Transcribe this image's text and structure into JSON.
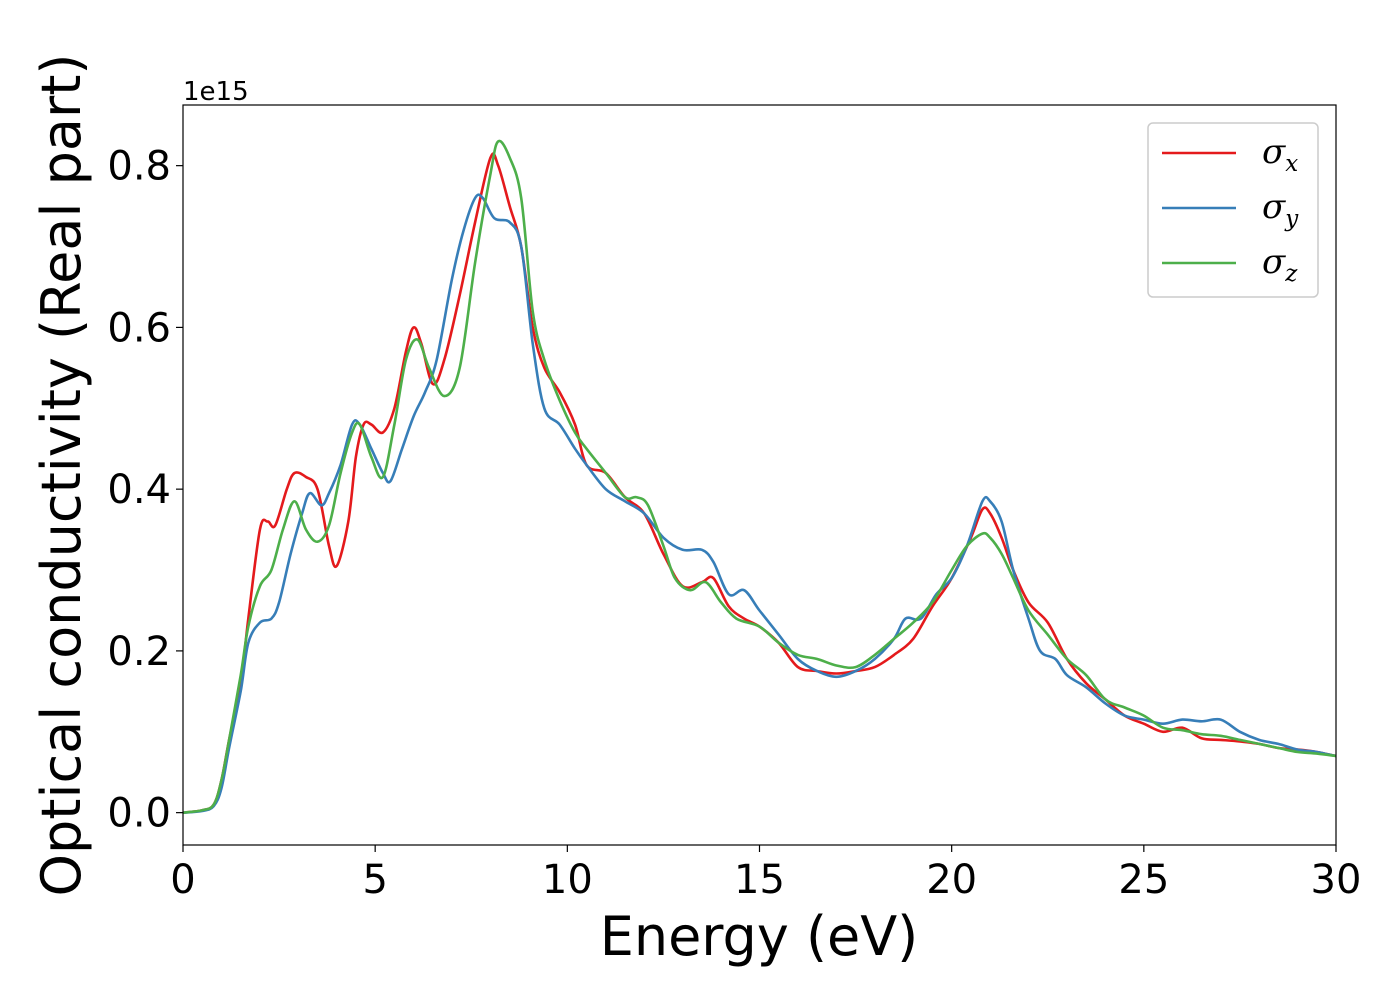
{
  "chart_data": {
    "type": "line",
    "title": "",
    "xlabel": "Energy (eV)",
    "ylabel": "Optical conductivity (Real part)",
    "y_offset_label": "1e15",
    "xlim": [
      0,
      30
    ],
    "ylim": [
      -0.04,
      0.875
    ],
    "x_ticks": [
      0,
      5,
      10,
      15,
      20,
      25,
      30
    ],
    "x_tick_labels": [
      "0",
      "5",
      "10",
      "15",
      "20",
      "25",
      "30"
    ],
    "y_ticks": [
      0.0,
      0.2,
      0.4,
      0.6,
      0.8
    ],
    "y_tick_labels": [
      "0.0",
      "0.2",
      "0.4",
      "0.6",
      "0.8"
    ],
    "grid": false,
    "legend_position": "top-right",
    "series": [
      {
        "name": "σx",
        "color": "#e41a1c",
        "points": [
          [
            0,
            0
          ],
          [
            0.5,
            0.003
          ],
          [
            0.8,
            0.01
          ],
          [
            1.0,
            0.04
          ],
          [
            1.2,
            0.09
          ],
          [
            1.5,
            0.16
          ],
          [
            1.7,
            0.24
          ],
          [
            2.0,
            0.35
          ],
          [
            2.2,
            0.36
          ],
          [
            2.4,
            0.355
          ],
          [
            2.7,
            0.4
          ],
          [
            2.9,
            0.42
          ],
          [
            3.2,
            0.415
          ],
          [
            3.5,
            0.4
          ],
          [
            3.8,
            0.33
          ],
          [
            4.0,
            0.305
          ],
          [
            4.3,
            0.36
          ],
          [
            4.5,
            0.44
          ],
          [
            4.7,
            0.48
          ],
          [
            4.9,
            0.48
          ],
          [
            5.2,
            0.47
          ],
          [
            5.5,
            0.5
          ],
          [
            5.8,
            0.57
          ],
          [
            6.0,
            0.6
          ],
          [
            6.2,
            0.58
          ],
          [
            6.5,
            0.53
          ],
          [
            6.8,
            0.56
          ],
          [
            7.2,
            0.64
          ],
          [
            7.6,
            0.73
          ],
          [
            8.0,
            0.81
          ],
          [
            8.2,
            0.8
          ],
          [
            8.5,
            0.75
          ],
          [
            8.8,
            0.7
          ],
          [
            9.1,
            0.6
          ],
          [
            9.4,
            0.55
          ],
          [
            9.8,
            0.52
          ],
          [
            10.2,
            0.48
          ],
          [
            10.5,
            0.43
          ],
          [
            11.0,
            0.42
          ],
          [
            11.5,
            0.39
          ],
          [
            12.0,
            0.37
          ],
          [
            12.5,
            0.32
          ],
          [
            13.0,
            0.28
          ],
          [
            13.5,
            0.285
          ],
          [
            13.8,
            0.29
          ],
          [
            14.2,
            0.255
          ],
          [
            14.6,
            0.24
          ],
          [
            15.0,
            0.23
          ],
          [
            15.5,
            0.21
          ],
          [
            16.0,
            0.18
          ],
          [
            16.5,
            0.175
          ],
          [
            17.0,
            0.172
          ],
          [
            17.5,
            0.175
          ],
          [
            18.0,
            0.18
          ],
          [
            18.5,
            0.195
          ],
          [
            19.0,
            0.215
          ],
          [
            19.5,
            0.255
          ],
          [
            20.0,
            0.29
          ],
          [
            20.5,
            0.34
          ],
          [
            20.8,
            0.375
          ],
          [
            21.0,
            0.37
          ],
          [
            21.3,
            0.34
          ],
          [
            21.6,
            0.3
          ],
          [
            22.0,
            0.26
          ],
          [
            22.5,
            0.235
          ],
          [
            23.0,
            0.19
          ],
          [
            23.5,
            0.16
          ],
          [
            24.0,
            0.14
          ],
          [
            24.5,
            0.12
          ],
          [
            25.0,
            0.11
          ],
          [
            25.5,
            0.1
          ],
          [
            26.0,
            0.105
          ],
          [
            26.5,
            0.092
          ],
          [
            27.0,
            0.09
          ],
          [
            27.5,
            0.088
          ],
          [
            28.0,
            0.085
          ],
          [
            28.5,
            0.08
          ],
          [
            29.0,
            0.078
          ],
          [
            29.5,
            0.075
          ],
          [
            30.0,
            0.07
          ]
        ]
      },
      {
        "name": "σy",
        "color": "#377eb8",
        "points": [
          [
            0,
            0
          ],
          [
            0.5,
            0.002
          ],
          [
            0.8,
            0.008
          ],
          [
            1.0,
            0.03
          ],
          [
            1.2,
            0.08
          ],
          [
            1.5,
            0.15
          ],
          [
            1.7,
            0.21
          ],
          [
            2.0,
            0.235
          ],
          [
            2.3,
            0.24
          ],
          [
            2.5,
            0.26
          ],
          [
            2.8,
            0.32
          ],
          [
            3.1,
            0.37
          ],
          [
            3.3,
            0.395
          ],
          [
            3.6,
            0.38
          ],
          [
            3.8,
            0.395
          ],
          [
            4.1,
            0.43
          ],
          [
            4.4,
            0.48
          ],
          [
            4.6,
            0.48
          ],
          [
            4.9,
            0.45
          ],
          [
            5.2,
            0.42
          ],
          [
            5.4,
            0.41
          ],
          [
            5.7,
            0.45
          ],
          [
            6.0,
            0.49
          ],
          [
            6.3,
            0.52
          ],
          [
            6.6,
            0.56
          ],
          [
            7.0,
            0.66
          ],
          [
            7.3,
            0.72
          ],
          [
            7.6,
            0.76
          ],
          [
            7.8,
            0.76
          ],
          [
            8.1,
            0.735
          ],
          [
            8.5,
            0.73
          ],
          [
            8.8,
            0.7
          ],
          [
            9.1,
            0.58
          ],
          [
            9.4,
            0.5
          ],
          [
            9.8,
            0.48
          ],
          [
            10.2,
            0.45
          ],
          [
            10.5,
            0.43
          ],
          [
            11.0,
            0.4
          ],
          [
            11.5,
            0.385
          ],
          [
            12.0,
            0.37
          ],
          [
            12.5,
            0.34
          ],
          [
            13.0,
            0.325
          ],
          [
            13.5,
            0.325
          ],
          [
            13.8,
            0.31
          ],
          [
            14.2,
            0.27
          ],
          [
            14.6,
            0.275
          ],
          [
            15.0,
            0.25
          ],
          [
            15.5,
            0.22
          ],
          [
            16.0,
            0.19
          ],
          [
            16.5,
            0.175
          ],
          [
            17.0,
            0.168
          ],
          [
            17.5,
            0.175
          ],
          [
            18.0,
            0.19
          ],
          [
            18.5,
            0.215
          ],
          [
            18.8,
            0.24
          ],
          [
            19.2,
            0.24
          ],
          [
            19.6,
            0.27
          ],
          [
            20.0,
            0.29
          ],
          [
            20.4,
            0.33
          ],
          [
            20.8,
            0.385
          ],
          [
            21.0,
            0.385
          ],
          [
            21.3,
            0.36
          ],
          [
            21.6,
            0.3
          ],
          [
            22.0,
            0.24
          ],
          [
            22.3,
            0.2
          ],
          [
            22.7,
            0.19
          ],
          [
            23.0,
            0.17
          ],
          [
            23.5,
            0.155
          ],
          [
            24.0,
            0.135
          ],
          [
            24.5,
            0.12
          ],
          [
            25.0,
            0.115
          ],
          [
            25.5,
            0.11
          ],
          [
            26.0,
            0.115
          ],
          [
            26.5,
            0.113
          ],
          [
            27.0,
            0.115
          ],
          [
            27.5,
            0.1
          ],
          [
            28.0,
            0.09
          ],
          [
            28.5,
            0.085
          ],
          [
            29.0,
            0.078
          ],
          [
            29.5,
            0.075
          ],
          [
            30.0,
            0.07
          ]
        ]
      },
      {
        "name": "σz",
        "color": "#4daf4a",
        "points": [
          [
            0,
            0
          ],
          [
            0.5,
            0.003
          ],
          [
            0.8,
            0.01
          ],
          [
            1.0,
            0.04
          ],
          [
            1.2,
            0.09
          ],
          [
            1.5,
            0.17
          ],
          [
            1.7,
            0.23
          ],
          [
            2.0,
            0.28
          ],
          [
            2.3,
            0.3
          ],
          [
            2.6,
            0.35
          ],
          [
            2.9,
            0.385
          ],
          [
            3.2,
            0.35
          ],
          [
            3.5,
            0.335
          ],
          [
            3.8,
            0.355
          ],
          [
            4.1,
            0.42
          ],
          [
            4.4,
            0.47
          ],
          [
            4.6,
            0.48
          ],
          [
            4.9,
            0.44
          ],
          [
            5.2,
            0.415
          ],
          [
            5.5,
            0.48
          ],
          [
            5.8,
            0.56
          ],
          [
            6.1,
            0.585
          ],
          [
            6.4,
            0.55
          ],
          [
            6.8,
            0.515
          ],
          [
            7.2,
            0.55
          ],
          [
            7.6,
            0.68
          ],
          [
            8.0,
            0.79
          ],
          [
            8.2,
            0.83
          ],
          [
            8.5,
            0.81
          ],
          [
            8.8,
            0.76
          ],
          [
            9.1,
            0.62
          ],
          [
            9.4,
            0.56
          ],
          [
            9.8,
            0.51
          ],
          [
            10.2,
            0.47
          ],
          [
            10.5,
            0.45
          ],
          [
            11.0,
            0.42
          ],
          [
            11.5,
            0.39
          ],
          [
            11.8,
            0.39
          ],
          [
            12.1,
            0.38
          ],
          [
            12.5,
            0.33
          ],
          [
            12.8,
            0.29
          ],
          [
            13.2,
            0.275
          ],
          [
            13.6,
            0.285
          ],
          [
            14.0,
            0.26
          ],
          [
            14.4,
            0.24
          ],
          [
            15.0,
            0.23
          ],
          [
            15.5,
            0.21
          ],
          [
            16.0,
            0.195
          ],
          [
            16.5,
            0.19
          ],
          [
            17.0,
            0.182
          ],
          [
            17.5,
            0.18
          ],
          [
            18.0,
            0.195
          ],
          [
            18.5,
            0.215
          ],
          [
            19.0,
            0.235
          ],
          [
            19.5,
            0.26
          ],
          [
            20.0,
            0.3
          ],
          [
            20.4,
            0.33
          ],
          [
            20.8,
            0.345
          ],
          [
            21.0,
            0.34
          ],
          [
            21.3,
            0.32
          ],
          [
            21.6,
            0.29
          ],
          [
            22.0,
            0.25
          ],
          [
            22.5,
            0.22
          ],
          [
            23.0,
            0.19
          ],
          [
            23.5,
            0.17
          ],
          [
            24.0,
            0.14
          ],
          [
            24.5,
            0.13
          ],
          [
            25.0,
            0.12
          ],
          [
            25.5,
            0.105
          ],
          [
            26.0,
            0.102
          ],
          [
            26.5,
            0.097
          ],
          [
            27.0,
            0.095
          ],
          [
            27.5,
            0.09
          ],
          [
            28.0,
            0.085
          ],
          [
            28.5,
            0.08
          ],
          [
            29.0,
            0.075
          ],
          [
            29.5,
            0.073
          ],
          [
            30.0,
            0.07
          ]
        ]
      }
    ]
  }
}
